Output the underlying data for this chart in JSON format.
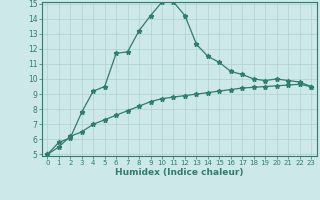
{
  "xlabel": "Humidex (Indice chaleur)",
  "x_values": [
    0,
    1,
    2,
    3,
    4,
    5,
    6,
    7,
    8,
    9,
    10,
    11,
    12,
    13,
    14,
    15,
    16,
    17,
    18,
    19,
    20,
    21,
    22,
    23
  ],
  "line1_y": [
    5.0,
    5.8,
    6.1,
    7.8,
    9.2,
    9.5,
    11.7,
    11.8,
    13.2,
    14.2,
    15.1,
    15.1,
    14.2,
    12.3,
    11.5,
    11.1,
    10.5,
    10.3,
    10.0,
    9.9,
    10.0,
    9.9,
    9.8,
    9.5
  ],
  "line2_y": [
    5.0,
    5.5,
    6.2,
    6.5,
    7.0,
    7.3,
    7.6,
    7.9,
    8.2,
    8.5,
    8.7,
    8.8,
    8.9,
    9.0,
    9.1,
    9.2,
    9.3,
    9.4,
    9.45,
    9.5,
    9.55,
    9.6,
    9.65,
    9.5
  ],
  "line_color": "#2e7d6e",
  "bg_color": "#cce8e8",
  "grid_color": "#b0d0d0",
  "ylim": [
    5,
    15
  ],
  "xlim": [
    -0.5,
    23.5
  ],
  "yticks": [
    5,
    6,
    7,
    8,
    9,
    10,
    11,
    12,
    13,
    14,
    15
  ],
  "xticks": [
    0,
    1,
    2,
    3,
    4,
    5,
    6,
    7,
    8,
    9,
    10,
    11,
    12,
    13,
    14,
    15,
    16,
    17,
    18,
    19,
    20,
    21,
    22,
    23
  ]
}
